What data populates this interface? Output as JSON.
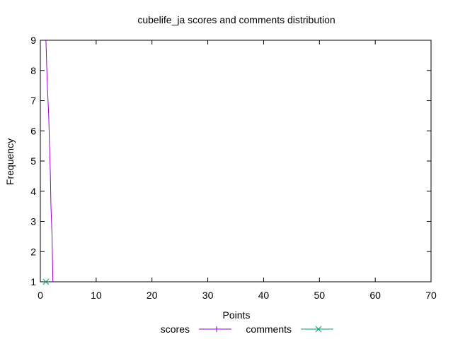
{
  "chart_data": {
    "type": "line",
    "title": "cubelife_ja scores and comments distribution",
    "xlabel": "Points",
    "ylabel": "Frequency",
    "xlim": [
      0,
      70
    ],
    "ylim": [
      1,
      9
    ],
    "xticks": [
      0,
      10,
      20,
      30,
      40,
      50,
      60,
      70
    ],
    "yticks": [
      1,
      2,
      3,
      4,
      5,
      6,
      7,
      8,
      9
    ],
    "grid": false,
    "legend_position": "bottom-center",
    "series": [
      {
        "name": "scores",
        "color": "#9400d3",
        "marker": "plus",
        "points": [
          [
            1,
            9
          ],
          [
            1.25,
            7.5
          ],
          [
            1.5,
            6.5
          ],
          [
            1.65,
            5.5
          ],
          [
            1.8,
            4.5
          ],
          [
            1.9,
            3.5
          ],
          [
            2.1,
            2.5
          ],
          [
            2.2,
            1.5
          ],
          [
            2.25,
            1
          ]
        ]
      },
      {
        "name": "comments",
        "color": "#009e73",
        "marker": "cross",
        "points": [
          [
            1,
            1
          ]
        ]
      }
    ]
  }
}
